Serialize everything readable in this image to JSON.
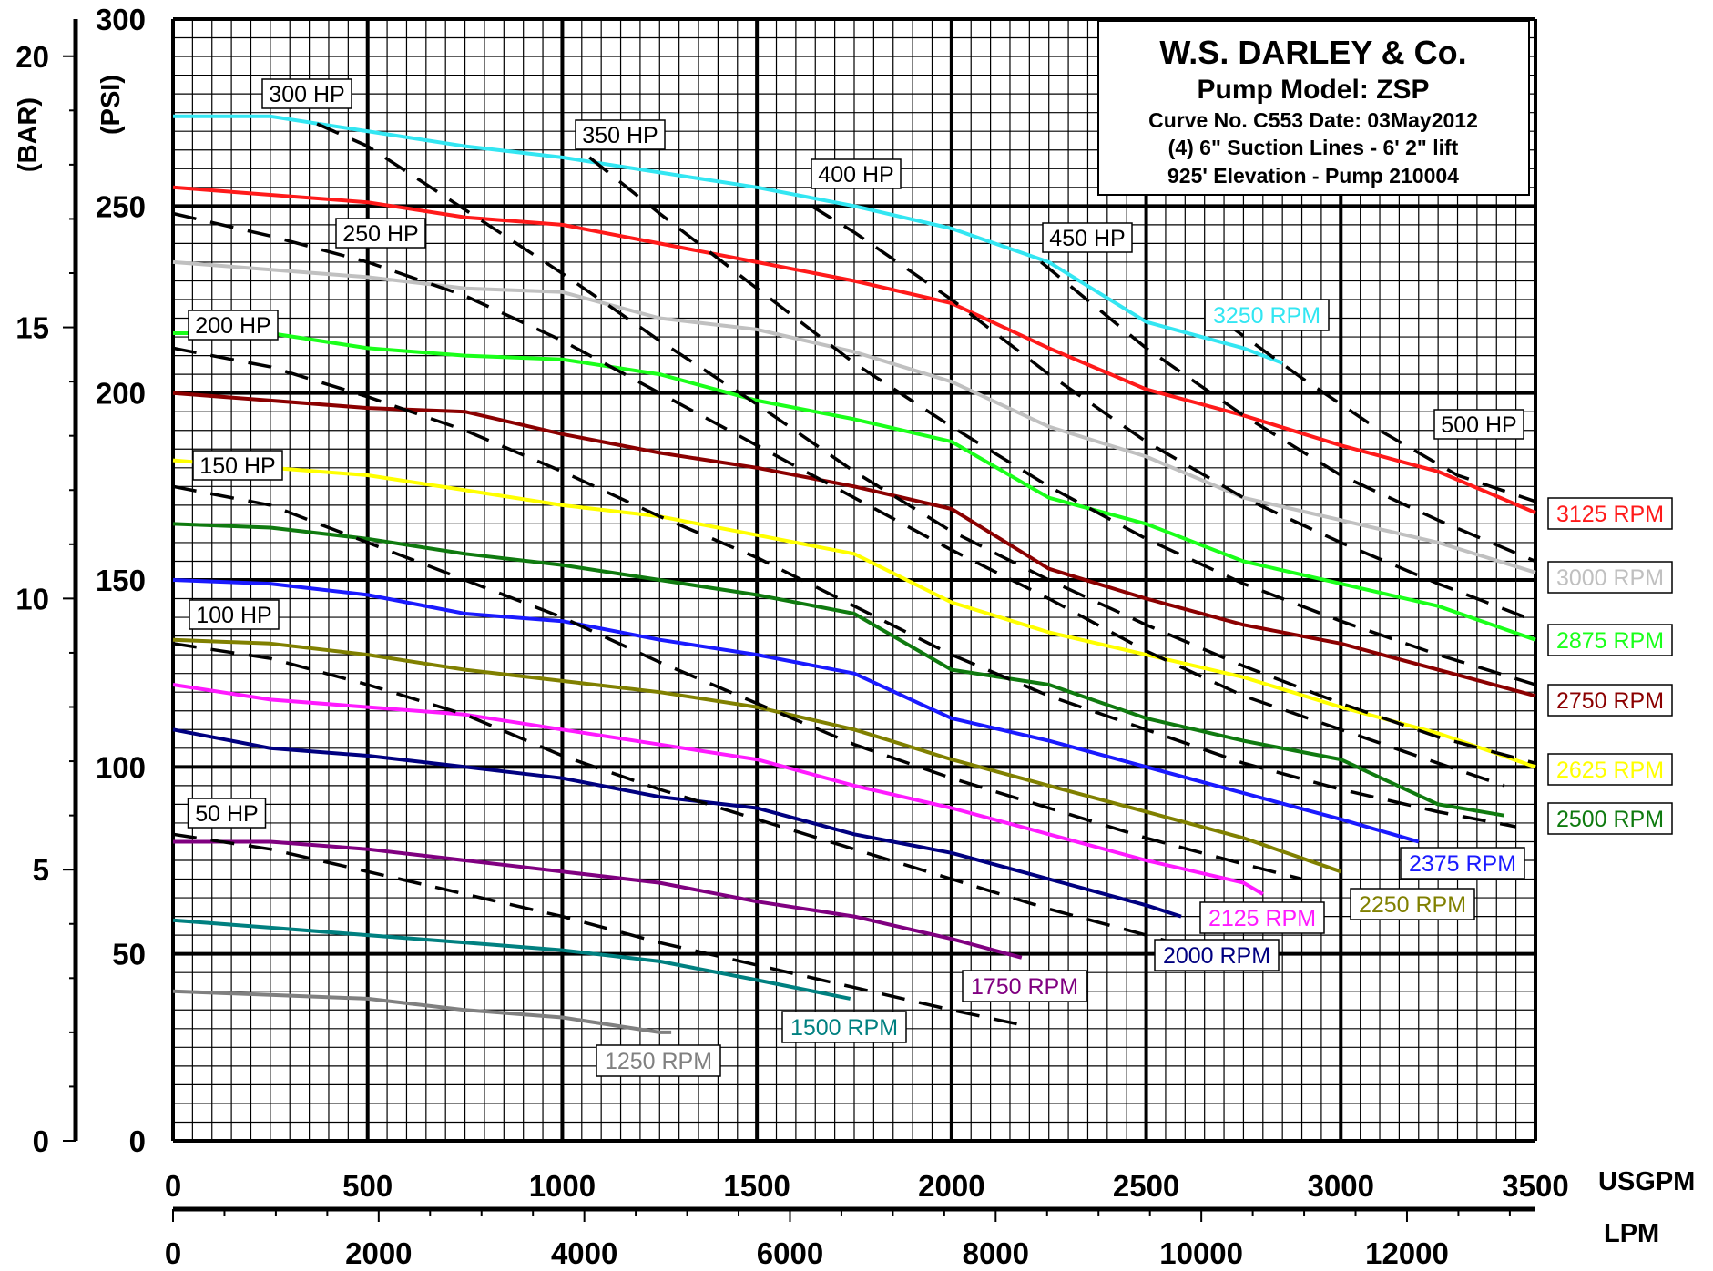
{
  "chart_data": {
    "type": "line",
    "x_primary": {
      "label": "USGPM",
      "range": [
        0,
        3500
      ],
      "ticks": [
        0,
        500,
        1000,
        1500,
        2000,
        2500,
        3000,
        3500
      ]
    },
    "x_secondary": {
      "label": "LPM",
      "ticks": [
        0,
        2000,
        4000,
        6000,
        8000,
        10000,
        12000
      ]
    },
    "y_primary": {
      "label": "(PSI)",
      "range": [
        0,
        300
      ],
      "ticks": [
        0,
        50,
        100,
        150,
        200,
        250,
        300
      ]
    },
    "y_secondary": {
      "label": "(BAR)",
      "ticks": [
        0,
        5,
        10,
        15,
        20
      ]
    },
    "grid": true,
    "info_box": {
      "company": "W.S. DARLEY & Co.",
      "model": "Pump Model: ZSP",
      "curve": "Curve No. C553 Date: 03May2012",
      "suction": "(4) 6\" Suction Lines - 6' 2\" lift",
      "elevation": "925' Elevation - Pump 210004"
    },
    "rpm_series": [
      {
        "name": "3250 RPM",
        "color": "#33e6f2",
        "x": [
          0,
          250,
          750,
          1000,
          1250,
          1500,
          1750,
          2000,
          2250,
          2500,
          2750,
          2850
        ],
        "y": [
          274,
          274,
          266,
          263,
          259,
          255,
          250,
          244,
          235,
          219,
          212,
          208
        ]
      },
      {
        "name": "3125 RPM",
        "color": "#ff1a1a",
        "x": [
          0,
          500,
          750,
          1000,
          1250,
          1500,
          1750,
          2000,
          2250,
          2500,
          2750,
          3000,
          3250,
          3500
        ],
        "y": [
          255,
          251,
          247,
          245,
          240,
          235,
          230,
          224,
          212,
          201,
          194,
          186,
          179,
          168
        ]
      },
      {
        "name": "3000 RPM",
        "color": "#c0c0c0",
        "x": [
          0,
          500,
          750,
          1000,
          1250,
          1500,
          1750,
          2000,
          2250,
          2500,
          2750,
          3000,
          3250,
          3500
        ],
        "y": [
          235,
          231,
          228,
          227,
          220,
          217,
          211,
          203,
          191,
          183,
          172,
          166,
          160,
          152
        ]
      },
      {
        "name": "2875 RPM",
        "color": "#1aff1a",
        "x": [
          0,
          250,
          500,
          750,
          1000,
          1250,
          1500,
          1750,
          2000,
          2250,
          2500,
          2750,
          3000,
          3250,
          3500
        ],
        "y": [
          216,
          216,
          212,
          210,
          209,
          205,
          198,
          193,
          187,
          172,
          165,
          155,
          149,
          143,
          134
        ]
      },
      {
        "name": "2750 RPM",
        "color": "#8b0000",
        "x": [
          0,
          250,
          500,
          750,
          1000,
          1250,
          1500,
          1750,
          2000,
          2250,
          2500,
          2750,
          3000,
          3250,
          3500
        ],
        "y": [
          200,
          198,
          196,
          195,
          189,
          184,
          180,
          175,
          169,
          153,
          145,
          138,
          133,
          126,
          119
        ]
      },
      {
        "name": "2625 RPM",
        "color": "#ffff00",
        "x": [
          0,
          250,
          500,
          750,
          1000,
          1250,
          1500,
          1750,
          2000,
          2250,
          2500,
          2750,
          3000,
          3250,
          3500
        ],
        "y": [
          182,
          180,
          178,
          174,
          170,
          167,
          162,
          157,
          144,
          136,
          130,
          124,
          116,
          109,
          100
        ]
      },
      {
        "name": "2500 RPM",
        "color": "#0f7a0f",
        "x": [
          0,
          250,
          500,
          750,
          1000,
          1250,
          1500,
          1750,
          2000,
          2250,
          2500,
          2750,
          3000,
          3250,
          3420
        ],
        "y": [
          165,
          164,
          161,
          157,
          154,
          150,
          146,
          141,
          126,
          122,
          113,
          107,
          102,
          90,
          87
        ]
      },
      {
        "name": "2375 RPM",
        "color": "#1a1aff",
        "x": [
          0,
          250,
          500,
          750,
          1000,
          1250,
          1500,
          1750,
          2000,
          2250,
          2500,
          2750,
          3000,
          3200
        ],
        "y": [
          150,
          149,
          146,
          141,
          139,
          134,
          130,
          125,
          113,
          107,
          100,
          93,
          86,
          80
        ]
      },
      {
        "name": "2250 RPM",
        "color": "#808000",
        "x": [
          0,
          250,
          500,
          750,
          1000,
          1250,
          1500,
          1750,
          2000,
          2250,
          2500,
          2750,
          3000
        ],
        "y": [
          134,
          133,
          130,
          126,
          123,
          120,
          116,
          110,
          102,
          95,
          88,
          81,
          72
        ]
      },
      {
        "name": "2125 RPM",
        "color": "#ff1aff",
        "x": [
          0,
          250,
          500,
          750,
          1000,
          1250,
          1500,
          1750,
          2000,
          2250,
          2500,
          2750,
          2800
        ],
        "y": [
          122,
          118,
          116,
          114,
          110,
          106,
          102,
          95,
          89,
          82,
          75,
          69,
          66
        ]
      },
      {
        "name": "2000 RPM",
        "color": "#000080",
        "x": [
          0,
          250,
          500,
          750,
          1000,
          1250,
          1500,
          1750,
          2000,
          2250,
          2500,
          2590
        ],
        "y": [
          110,
          105,
          103,
          100,
          97,
          92,
          89,
          82,
          77,
          70,
          63,
          60
        ]
      },
      {
        "name": "1750 RPM",
        "color": "#800080",
        "x": [
          0,
          250,
          500,
          750,
          1000,
          1250,
          1500,
          1750,
          2000,
          2180
        ],
        "y": [
          80,
          80,
          78,
          75,
          72,
          69,
          64,
          60,
          54,
          49
        ]
      },
      {
        "name": "1500 RPM",
        "color": "#008080",
        "x": [
          0,
          250,
          500,
          750,
          1000,
          1250,
          1500,
          1740
        ],
        "y": [
          59,
          57,
          55,
          53,
          51,
          48,
          43,
          38
        ]
      },
      {
        "name": "1250 RPM",
        "color": "#808080",
        "x": [
          0,
          250,
          500,
          750,
          1000,
          1250,
          1280
        ],
        "y": [
          40,
          39,
          38,
          35,
          33,
          29,
          29
        ]
      }
    ],
    "hp_series": [
      {
        "name": "50 HP",
        "x": [
          0,
          250,
          500,
          750,
          1000,
          1250,
          1500,
          1750,
          2000,
          2180
        ],
        "y": [
          82,
          78,
          72,
          66,
          60,
          53,
          47,
          41,
          35,
          31
        ]
      },
      {
        "name": "100 HP",
        "x": [
          0,
          250,
          500,
          750,
          1000,
          1250,
          1500,
          1750,
          2000,
          2250,
          2500,
          2740
        ],
        "y": [
          133,
          129,
          122,
          114,
          103,
          94,
          86,
          78,
          70,
          62,
          55,
          48
        ]
      },
      {
        "name": "150 HP",
        "x": [
          0,
          250,
          500,
          750,
          1000,
          1250,
          1500,
          1750,
          2000,
          2250,
          2500,
          2750,
          2900
        ],
        "y": [
          175,
          170,
          160,
          150,
          140,
          128,
          117,
          106,
          97,
          89,
          81,
          74,
          70
        ]
      },
      {
        "name": "200 HP",
        "x": [
          0,
          250,
          500,
          750,
          1000,
          1250,
          1500,
          1750,
          2000,
          2250,
          2500,
          2750,
          3000,
          3250,
          3450
        ],
        "y": [
          212,
          207,
          199,
          190,
          179,
          167,
          156,
          143,
          130,
          119,
          110,
          101,
          94,
          88,
          84
        ]
      },
      {
        "name": "250 HP",
        "x": [
          0,
          250,
          500,
          750,
          1000,
          1250,
          1500,
          1750,
          2000,
          2250,
          2500,
          2750,
          3000,
          3250,
          3420
        ],
        "y": [
          248,
          242,
          235,
          226,
          214,
          200,
          186,
          172,
          158,
          145,
          131,
          119,
          110,
          101,
          95
        ]
      },
      {
        "name": "300 HP",
        "x": [
          370,
          500,
          750,
          1000,
          1250,
          1500,
          1750,
          2000,
          2250,
          2500,
          2750,
          3000,
          3250,
          3500
        ],
        "y": [
          272,
          266,
          249,
          232,
          214,
          197,
          179,
          163,
          150,
          138,
          127,
          117,
          108,
          101
        ]
      },
      {
        "name": "350 HP",
        "x": [
          1070,
          1250,
          1500,
          1750,
          2000,
          2250,
          2500,
          2750,
          3000,
          3250,
          3500
        ],
        "y": [
          263,
          248,
          228,
          208,
          191,
          175,
          161,
          149,
          139,
          130,
          122
        ]
      },
      {
        "name": "400 HP",
        "x": [
          1640,
          1750,
          2000,
          2250,
          2500,
          2750,
          3000,
          3250,
          3500
        ],
        "y": [
          250,
          243,
          225,
          205,
          187,
          172,
          160,
          149,
          139
        ]
      },
      {
        "name": "450 HP",
        "x": [
          2230,
          2500,
          2750,
          3000,
          3250,
          3500
        ],
        "y": [
          235,
          212,
          194,
          178,
          166,
          155
        ]
      },
      {
        "name": "500 HP",
        "x": [
          2700,
          2900,
          3100,
          3300,
          3500
        ],
        "y": [
          219,
          204,
          190,
          178,
          171
        ]
      }
    ],
    "hp_labels": [
      "300 HP",
      "350 HP",
      "400 HP",
      "450 HP",
      "250 HP",
      "200 HP",
      "150 HP",
      "100 HP",
      "50 HP",
      "500 HP"
    ],
    "rpm_labels": [
      {
        "text": "3250 RPM",
        "color": "#33e6f2"
      },
      {
        "text": "3125 RPM",
        "color": "#ff1a1a"
      },
      {
        "text": "3000 RPM",
        "color": "#c0c0c0"
      },
      {
        "text": "2875 RPM",
        "color": "#1aff1a"
      },
      {
        "text": "2750 RPM",
        "color": "#8b0000"
      },
      {
        "text": "2625 RPM",
        "color": "#ffff00"
      },
      {
        "text": "2500 RPM",
        "color": "#0f7a0f"
      },
      {
        "text": "2375 RPM",
        "color": "#1a1aff"
      },
      {
        "text": "2250 RPM",
        "color": "#808000"
      },
      {
        "text": "2125 RPM",
        "color": "#ff1aff"
      },
      {
        "text": "2000 RPM",
        "color": "#000080"
      },
      {
        "text": "1750 RPM",
        "color": "#800080"
      },
      {
        "text": "1500 RPM",
        "color": "#008080"
      },
      {
        "text": "1250 RPM",
        "color": "#808080"
      }
    ]
  }
}
